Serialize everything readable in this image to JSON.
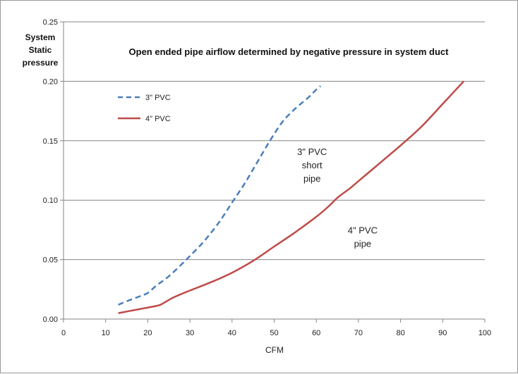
{
  "chart_data": {
    "type": "line",
    "title": "Open ended pipe airflow determined by negative pressure in system duct",
    "xlabel": "CFM",
    "ylabel": [
      "System",
      "Static",
      "pressure"
    ],
    "xlim": [
      0,
      100
    ],
    "ylim": [
      0,
      0.25
    ],
    "x_ticks": [
      "0",
      "10",
      "20",
      "30",
      "40",
      "50",
      "60",
      "70",
      "80",
      "90",
      "100"
    ],
    "y_ticks": [
      "0.00",
      "0.05",
      "0.10",
      "0.15",
      "0.20",
      "0.25"
    ],
    "grid": "horizontal",
    "legend_position": "top-left",
    "series": [
      {
        "name": "3\" PVC",
        "color": "#4a7ebb",
        "style": "dashed",
        "points": [
          [
            13,
            0.012
          ],
          [
            15,
            0.015
          ],
          [
            18,
            0.019
          ],
          [
            20,
            0.022
          ],
          [
            22,
            0.028
          ],
          [
            25,
            0.036
          ],
          [
            28,
            0.046
          ],
          [
            30,
            0.053
          ],
          [
            33,
            0.064
          ],
          [
            36,
            0.077
          ],
          [
            38,
            0.087
          ],
          [
            40,
            0.098
          ],
          [
            43,
            0.114
          ],
          [
            46,
            0.132
          ],
          [
            49,
            0.15
          ],
          [
            52,
            0.166
          ],
          [
            55,
            0.177
          ],
          [
            58,
            0.186
          ],
          [
            60,
            0.193
          ],
          [
            61,
            0.196
          ]
        ]
      },
      {
        "name": "4\" PVC",
        "color": "#be4b48",
        "style": "solid",
        "points": [
          [
            13,
            0.005
          ],
          [
            16,
            0.007
          ],
          [
            19,
            0.009
          ],
          [
            22,
            0.011
          ],
          [
            23,
            0.012
          ],
          [
            24,
            0.014
          ],
          [
            26,
            0.018
          ],
          [
            30,
            0.024
          ],
          [
            35,
            0.031
          ],
          [
            40,
            0.039
          ],
          [
            45,
            0.049
          ],
          [
            50,
            0.061
          ],
          [
            55,
            0.073
          ],
          [
            60,
            0.086
          ],
          [
            63,
            0.095
          ],
          [
            65,
            0.102
          ],
          [
            68,
            0.11
          ],
          [
            70,
            0.116
          ],
          [
            75,
            0.131
          ],
          [
            80,
            0.146
          ],
          [
            85,
            0.162
          ],
          [
            90,
            0.181
          ],
          [
            95,
            0.2
          ]
        ]
      }
    ],
    "annotations": [
      {
        "lines": [
          "3\" PVC",
          "short",
          "pipe"
        ],
        "x": 59,
        "y": 0.138
      },
      {
        "lines": [
          "4\" PVC",
          "pipe"
        ],
        "x": 71,
        "y": 0.072
      }
    ]
  }
}
